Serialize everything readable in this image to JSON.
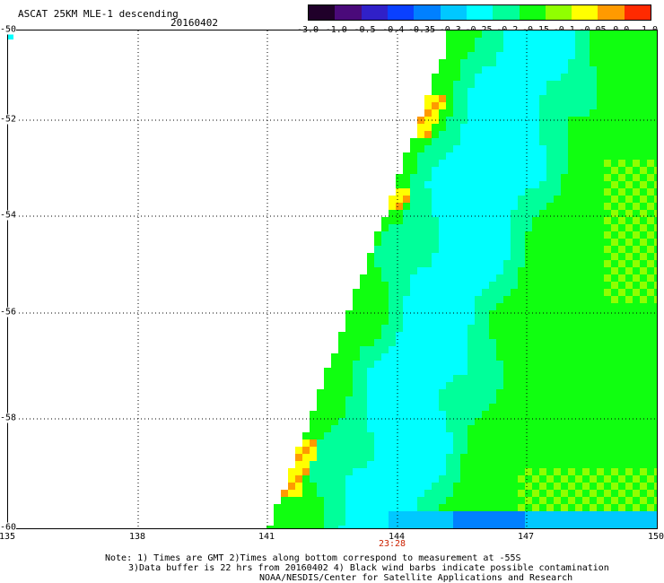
{
  "header": {
    "title": "ASCAT 25KM MLE-1 descending",
    "date": "20160402"
  },
  "colorbar": {
    "labels": [
      "-3.0",
      "-1.0",
      "-0.5",
      "-0.4",
      "-0.35",
      "-0.3",
      "-0.25",
      "-0.2",
      "-0.15",
      "-0.1",
      "-0.05",
      "0.0",
      "1.0"
    ],
    "colors": [
      "#20002a",
      "#4a0a7a",
      "#3020c8",
      "#0a40ff",
      "#0080ff",
      "#00c8ff",
      "#00ffff",
      "#00ff9a",
      "#10ff10",
      "#90ff00",
      "#ffff00",
      "#ff9a00",
      "#ff2a00"
    ]
  },
  "axes": {
    "lat_labels": [
      "-50",
      "-52",
      "-54",
      "-56",
      "-58",
      "-60"
    ],
    "lon_labels": [
      "135",
      "138",
      "141",
      "144",
      "147",
      "150"
    ]
  },
  "time_marker": "23:28",
  "notes": {
    "line1": "Note: 1) Times are GMT 2)Times along bottom correspond to measurement at -55S",
    "line2": "3)Data buffer is 22 hrs from 20160402 4) Black wind barbs indicate possible contamination",
    "line3": "NOAA/NESDIS/Center for Satellite Applications and Research"
  }
}
